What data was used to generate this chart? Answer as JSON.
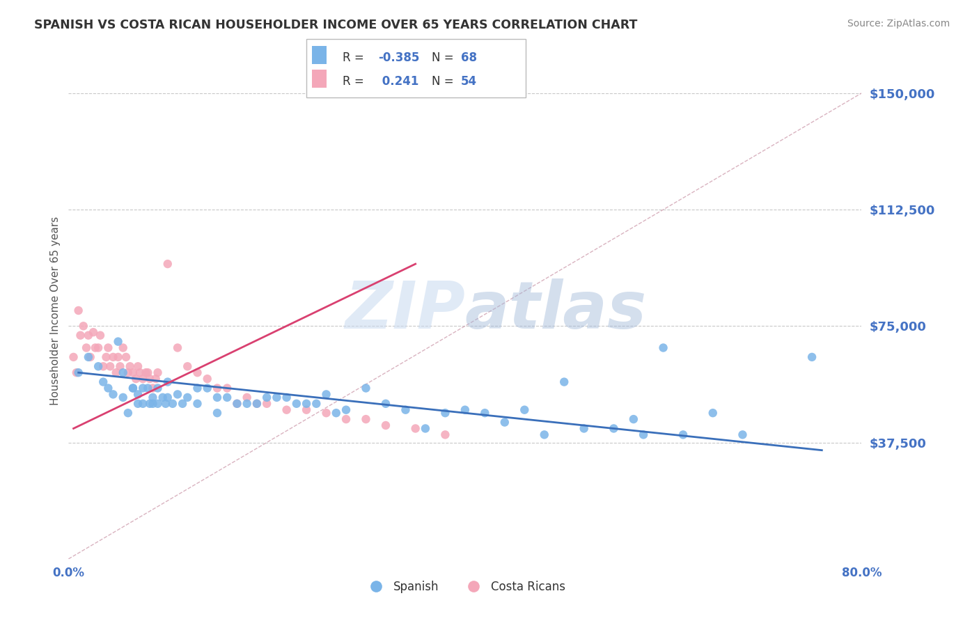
{
  "title": "SPANISH VS COSTA RICAN HOUSEHOLDER INCOME OVER 65 YEARS CORRELATION CHART",
  "source": "Source: ZipAtlas.com",
  "ylabel": "Householder Income Over 65 years",
  "xlim": [
    0.0,
    0.8
  ],
  "ylim": [
    0,
    160000
  ],
  "yticks": [
    37500,
    75000,
    112500,
    150000
  ],
  "ytick_labels": [
    "$37,500",
    "$75,000",
    "$112,500",
    "$150,000"
  ],
  "background_color": "#ffffff",
  "grid_color": "#c8c8c8",
  "title_color": "#333333",
  "axis_label_color": "#4472c4",
  "watermark_zip": "ZIP",
  "watermark_atlas": "atlas",
  "spanish_color": "#7ab4e8",
  "costarican_color": "#f4a7b9",
  "spanish_line_color": "#3a6fba",
  "costarican_line_color": "#d94070",
  "ref_line_color": "#d0a0b0",
  "spanish_x": [
    0.01,
    0.02,
    0.03,
    0.035,
    0.04,
    0.045,
    0.05,
    0.055,
    0.055,
    0.06,
    0.065,
    0.065,
    0.07,
    0.07,
    0.075,
    0.075,
    0.08,
    0.082,
    0.085,
    0.085,
    0.09,
    0.09,
    0.095,
    0.098,
    0.1,
    0.1,
    0.105,
    0.11,
    0.115,
    0.12,
    0.13,
    0.13,
    0.14,
    0.15,
    0.15,
    0.16,
    0.17,
    0.18,
    0.19,
    0.2,
    0.21,
    0.22,
    0.23,
    0.24,
    0.25,
    0.26,
    0.27,
    0.28,
    0.3,
    0.32,
    0.34,
    0.36,
    0.38,
    0.4,
    0.42,
    0.44,
    0.46,
    0.48,
    0.5,
    0.52,
    0.55,
    0.57,
    0.58,
    0.6,
    0.62,
    0.65,
    0.68,
    0.75
  ],
  "spanish_y": [
    60000,
    65000,
    62000,
    57000,
    55000,
    53000,
    70000,
    52000,
    60000,
    47000,
    55000,
    55000,
    50000,
    53000,
    55000,
    50000,
    55000,
    50000,
    52000,
    50000,
    55000,
    50000,
    52000,
    50000,
    57000,
    52000,
    50000,
    53000,
    50000,
    52000,
    55000,
    50000,
    55000,
    52000,
    47000,
    52000,
    50000,
    50000,
    50000,
    52000,
    52000,
    52000,
    50000,
    50000,
    50000,
    53000,
    47000,
    48000,
    55000,
    50000,
    48000,
    42000,
    47000,
    48000,
    47000,
    44000,
    48000,
    40000,
    57000,
    42000,
    42000,
    45000,
    40000,
    68000,
    40000,
    47000,
    40000,
    65000
  ],
  "costarican_x": [
    0.005,
    0.008,
    0.01,
    0.012,
    0.015,
    0.018,
    0.02,
    0.022,
    0.025,
    0.027,
    0.03,
    0.032,
    0.035,
    0.038,
    0.04,
    0.042,
    0.045,
    0.048,
    0.05,
    0.052,
    0.055,
    0.058,
    0.06,
    0.062,
    0.065,
    0.068,
    0.07,
    0.072,
    0.075,
    0.078,
    0.08,
    0.082,
    0.085,
    0.088,
    0.09,
    0.1,
    0.11,
    0.12,
    0.13,
    0.14,
    0.15,
    0.16,
    0.17,
    0.18,
    0.19,
    0.2,
    0.22,
    0.24,
    0.26,
    0.28,
    0.3,
    0.32,
    0.35,
    0.38
  ],
  "costarican_y": [
    65000,
    60000,
    80000,
    72000,
    75000,
    68000,
    72000,
    65000,
    73000,
    68000,
    68000,
    72000,
    62000,
    65000,
    68000,
    62000,
    65000,
    60000,
    65000,
    62000,
    68000,
    65000,
    60000,
    62000,
    60000,
    58000,
    62000,
    60000,
    58000,
    60000,
    60000,
    58000,
    55000,
    58000,
    60000,
    95000,
    68000,
    62000,
    60000,
    58000,
    55000,
    55000,
    50000,
    52000,
    50000,
    50000,
    48000,
    48000,
    47000,
    45000,
    45000,
    43000,
    42000,
    40000
  ],
  "spanish_line_x0": 0.01,
  "spanish_line_x1": 0.76,
  "spanish_line_y0": 60000,
  "spanish_line_y1": 35000,
  "costarican_line_x0": 0.005,
  "costarican_line_x1": 0.35,
  "costarican_line_y0": 42000,
  "costarican_line_y1": 95000
}
